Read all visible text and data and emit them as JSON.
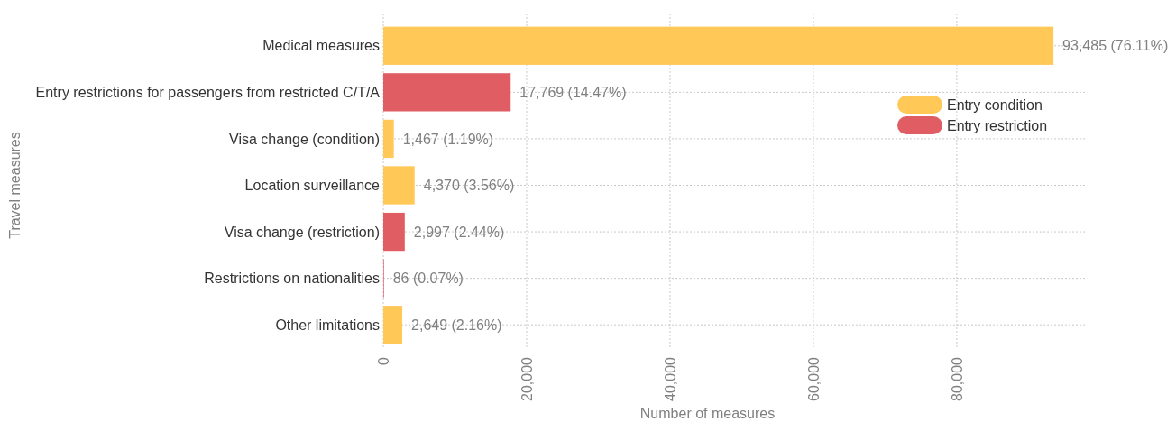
{
  "chart_data": {
    "type": "bar",
    "orientation": "horizontal",
    "xlabel": "Number of measures",
    "ylabel": "Travel measures",
    "categories": [
      "Medical measures",
      "Entry restrictions for passengers from restricted C/T/A",
      "Visa change (condition)",
      "Location surveillance",
      "Visa change (restriction)",
      "Restrictions on nationalities",
      "Other limitations"
    ],
    "series": [
      {
        "name": "Entry condition",
        "color": "#ffc857",
        "values": [
          93485,
          null,
          1467,
          4370,
          null,
          null,
          2649
        ],
        "value_labels": [
          "93,485 (76.11%)",
          null,
          "1,467 (1.19%)",
          "4,370 (3.56%)",
          null,
          null,
          "2,649 (2.16%)"
        ]
      },
      {
        "name": "Entry restriction",
        "color": "#e05d63",
        "values": [
          null,
          17769,
          null,
          null,
          2997,
          86,
          null
        ],
        "value_labels": [
          null,
          "17,769 (14.47%)",
          null,
          null,
          "2,997 (2.44%)",
          "86 (0.07%)",
          null
        ]
      }
    ],
    "xlim": [
      0,
      98000
    ],
    "xticks": [
      {
        "value": 0,
        "label": "0"
      },
      {
        "value": 20000,
        "label": "20,000"
      },
      {
        "value": 40000,
        "label": "40,000"
      },
      {
        "value": 60000,
        "label": "60,000"
      },
      {
        "value": 80000,
        "label": "80,000"
      }
    ],
    "grid": true,
    "legend": "top right"
  }
}
